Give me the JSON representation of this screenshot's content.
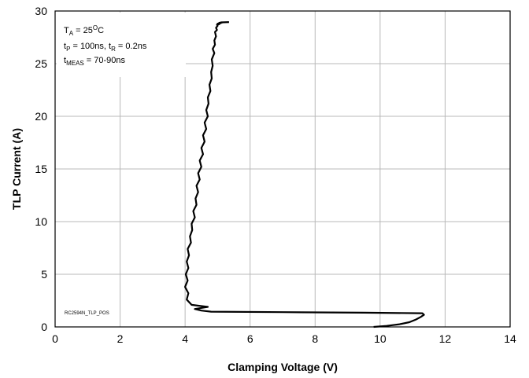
{
  "chart_data": {
    "type": "line",
    "xlabel": "Clamping Voltage (V)",
    "ylabel": "TLP Current (A)",
    "xlim": [
      0,
      14
    ],
    "ylim": [
      0,
      30
    ],
    "xticks": [
      0,
      2,
      4,
      6,
      8,
      10,
      12,
      14
    ],
    "yticks": [
      0,
      5,
      10,
      15,
      20,
      25,
      30
    ],
    "grid": true,
    "line_color": "#000000",
    "annotation_lines": [
      {
        "main": "T",
        "sub": "A",
        "rest": " = 25",
        "sup": "O",
        "tail": "C"
      },
      {
        "main": "t",
        "sub": "P",
        "rest": " = 100ns, t",
        "sub2": "R",
        "tail": " = 0.2ns"
      },
      {
        "main": "t",
        "sub": "MEAS",
        "rest": " = 70-90ns"
      }
    ],
    "watermark": "RC2594N_TLP_POS",
    "series": [
      {
        "x": [
          9.8,
          10.2,
          10.6,
          10.9,
          11.1,
          11.25,
          11.35,
          11.3,
          9.5,
          7.0,
          4.8,
          4.5,
          4.3,
          4.7,
          4.2,
          4.05,
          4.1,
          4.0,
          4.08,
          4.02,
          4.1,
          4.05,
          4.12,
          4.08,
          4.18,
          4.15,
          4.22,
          4.2,
          4.3,
          4.25,
          4.35,
          4.32,
          4.4,
          4.35,
          4.45,
          4.4,
          4.5,
          4.45,
          4.55,
          4.5,
          4.6,
          4.55,
          4.65,
          4.6,
          4.7,
          4.65,
          4.72,
          4.7,
          4.78,
          4.75,
          4.82,
          4.8,
          4.85,
          4.82,
          4.9,
          4.85,
          4.92,
          4.9,
          4.95,
          4.92,
          4.98,
          4.95,
          5.0,
          4.98,
          5.05,
          5.0,
          5.1,
          5.05,
          5.15,
          5.1,
          5.35
        ],
        "y": [
          0.0,
          0.1,
          0.25,
          0.45,
          0.7,
          0.95,
          1.15,
          1.3,
          1.35,
          1.4,
          1.45,
          1.55,
          1.7,
          1.9,
          2.1,
          2.6,
          3.2,
          3.8,
          4.4,
          5.0,
          5.6,
          6.2,
          6.8,
          7.4,
          8.0,
          8.6,
          9.2,
          9.8,
          10.4,
          11.0,
          11.6,
          12.2,
          12.8,
          13.4,
          14.0,
          14.6,
          15.2,
          15.8,
          16.4,
          17.0,
          17.6,
          18.2,
          18.8,
          19.4,
          20.0,
          20.6,
          21.2,
          21.8,
          22.4,
          23.0,
          23.6,
          24.2,
          24.8,
          25.4,
          26.0,
          26.4,
          26.8,
          27.2,
          27.6,
          28.0,
          28.2,
          28.4,
          28.6,
          28.7,
          28.75,
          28.8,
          28.85,
          28.88,
          28.9,
          28.92,
          28.95
        ]
      }
    ]
  }
}
